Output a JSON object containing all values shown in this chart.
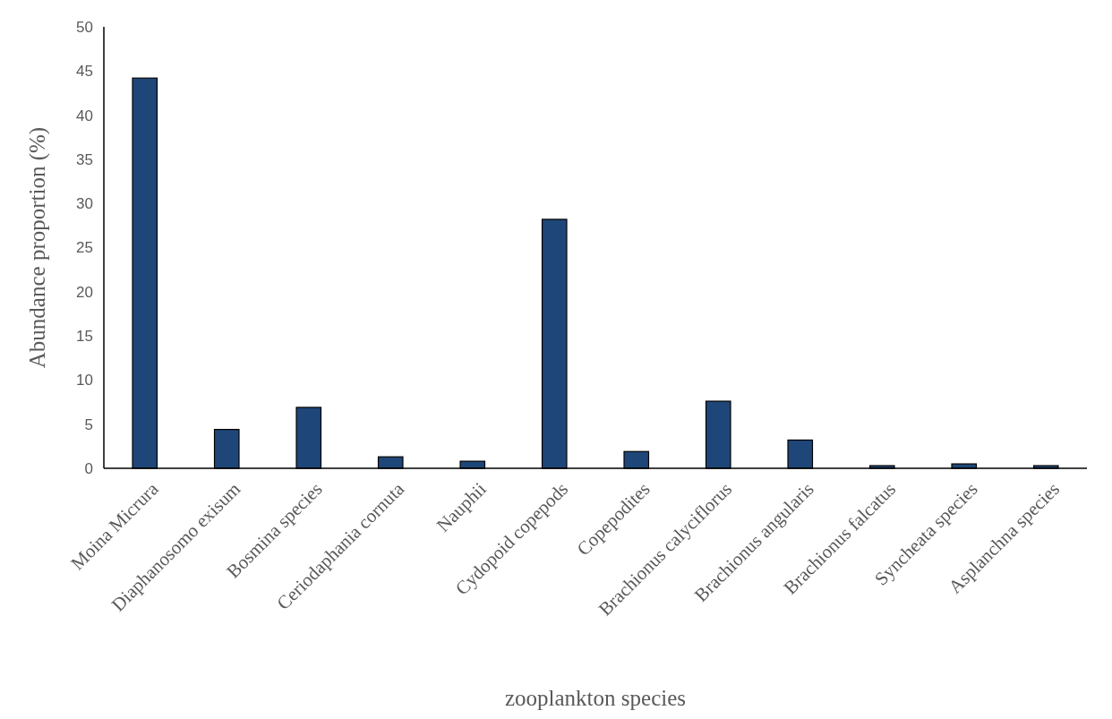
{
  "chart_data": {
    "type": "bar",
    "xlabel": "zooplankton species",
    "ylabel": "Abundance proportion (%)",
    "categories": [
      "Moina Micrura",
      "Diaphanosomo exisum",
      "Bosmina species",
      "Ceriodaphania cornuta",
      "Nauphii",
      "Cydopoid copepods",
      "Copepodites",
      "Brachionus calyciflorus",
      "Brachionus angularis",
      "Brachionus falcatus",
      "Syncheata species",
      "Asplanchna species"
    ],
    "values": [
      44.2,
      4.4,
      6.9,
      1.3,
      0.8,
      28.2,
      1.9,
      7.6,
      3.2,
      0.3,
      0.5,
      0.3
    ],
    "color": "#1f4678",
    "ylim": [
      0,
      50
    ],
    "yticks": [
      0,
      5,
      10,
      15,
      20,
      25,
      30,
      35,
      40,
      45,
      50
    ],
    "grid": false
  }
}
